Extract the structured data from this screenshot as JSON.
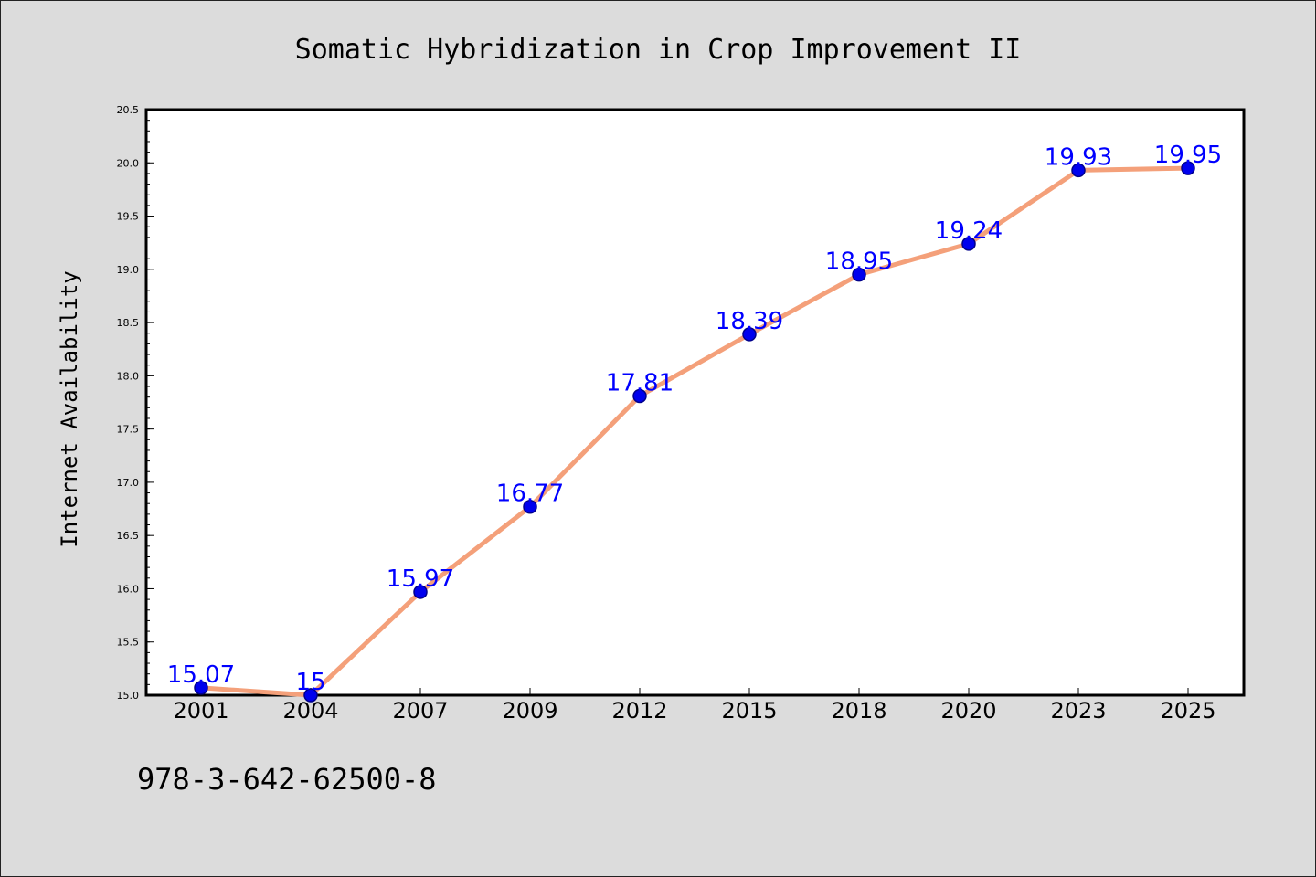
{
  "chart_data": {
    "type": "line",
    "title": "Somatic Hybridization in Crop Improvement II",
    "xlabel": "",
    "ylabel": "Internet Availability",
    "categories": [
      "2001",
      "2004",
      "2007",
      "2009",
      "2012",
      "2015",
      "2018",
      "2020",
      "2023",
      "2025"
    ],
    "values": [
      15.07,
      15.0,
      15.97,
      16.77,
      17.81,
      18.39,
      18.95,
      19.24,
      19.93,
      19.95
    ],
    "data_labels": [
      "15.07",
      "15",
      "15.97",
      "16.77",
      "17.81",
      "18.39",
      "18.95",
      "19.24",
      "19.93",
      "19.95"
    ],
    "ylim": [
      15.0,
      20.5
    ],
    "yticks": [
      "15.0",
      "15.5",
      "16.0",
      "16.5",
      "17.0",
      "17.5",
      "18.0",
      "18.5",
      "19.0",
      "19.5",
      "20.0",
      "20.5"
    ],
    "grid": false,
    "legend": "none",
    "line_color": "#f4a07a",
    "marker_color": "#0000ee",
    "label_color": "#0000ff",
    "background_color": "#dcdcdc",
    "plot_background": "#ffffff"
  },
  "footer": {
    "isbn": "978-3-642-62500-8"
  }
}
